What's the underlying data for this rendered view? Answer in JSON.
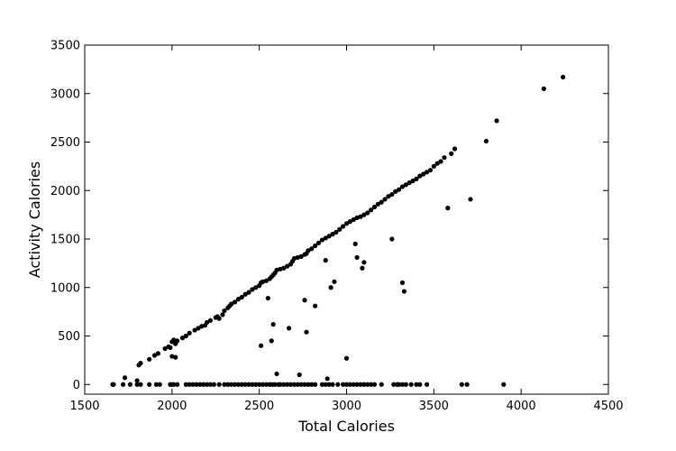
{
  "chart_data": {
    "type": "scatter",
    "title": "",
    "xlabel": "Total Calories",
    "ylabel": "Activity Calories",
    "xlim": [
      1500,
      4500
    ],
    "ylim": [
      -100,
      3500
    ],
    "xticks": [
      1500,
      2000,
      2500,
      3000,
      3500,
      4000,
      4500
    ],
    "yticks": [
      0,
      500,
      1000,
      1500,
      2000,
      2500,
      3000,
      3500
    ],
    "grid": false,
    "marker_color": "#000000",
    "series": [
      {
        "points": [
          [
            1660,
            0
          ],
          [
            1665,
            0
          ],
          [
            1720,
            0
          ],
          [
            1760,
            0
          ],
          [
            1800,
            0
          ],
          [
            1820,
            0
          ],
          [
            1870,
            0
          ],
          [
            1910,
            0
          ],
          [
            1930,
            0
          ],
          [
            1990,
            0
          ],
          [
            2000,
            0
          ],
          [
            2010,
            0
          ],
          [
            2030,
            0
          ],
          [
            2080,
            0
          ],
          [
            2100,
            0
          ],
          [
            2120,
            0
          ],
          [
            2140,
            0
          ],
          [
            2160,
            0
          ],
          [
            2180,
            0
          ],
          [
            2200,
            0
          ],
          [
            2220,
            0
          ],
          [
            2240,
            0
          ],
          [
            2270,
            0
          ],
          [
            2300,
            0
          ],
          [
            2320,
            0
          ],
          [
            2340,
            0
          ],
          [
            2360,
            0
          ],
          [
            2380,
            0
          ],
          [
            2400,
            0
          ],
          [
            2420,
            0
          ],
          [
            2440,
            0
          ],
          [
            2460,
            0
          ],
          [
            2480,
            0
          ],
          [
            2500,
            0
          ],
          [
            2520,
            0
          ],
          [
            2540,
            0
          ],
          [
            2560,
            0
          ],
          [
            2575,
            0
          ],
          [
            2590,
            0
          ],
          [
            2610,
            0
          ],
          [
            2620,
            0
          ],
          [
            2640,
            0
          ],
          [
            2660,
            0
          ],
          [
            2680,
            0
          ],
          [
            2700,
            0
          ],
          [
            2720,
            0
          ],
          [
            2740,
            0
          ],
          [
            2760,
            0
          ],
          [
            2780,
            0
          ],
          [
            2800,
            0
          ],
          [
            2820,
            0
          ],
          [
            2860,
            0
          ],
          [
            2880,
            0
          ],
          [
            2900,
            0
          ],
          [
            2920,
            0
          ],
          [
            2950,
            0
          ],
          [
            2980,
            0
          ],
          [
            3000,
            0
          ],
          [
            3020,
            0
          ],
          [
            3040,
            0
          ],
          [
            3060,
            0
          ],
          [
            3080,
            0
          ],
          [
            3100,
            0
          ],
          [
            3120,
            0
          ],
          [
            3140,
            0
          ],
          [
            3160,
            0
          ],
          [
            3200,
            0
          ],
          [
            3270,
            0
          ],
          [
            3290,
            0
          ],
          [
            3300,
            0
          ],
          [
            3320,
            0
          ],
          [
            3340,
            0
          ],
          [
            3370,
            0
          ],
          [
            3400,
            0
          ],
          [
            3420,
            0
          ],
          [
            3460,
            0
          ],
          [
            3660,
            0
          ],
          [
            3690,
            0
          ],
          [
            3900,
            0
          ],
          [
            1730,
            70
          ],
          [
            1800,
            40
          ],
          [
            1810,
            200
          ],
          [
            1820,
            220
          ],
          [
            1870,
            260
          ],
          [
            1900,
            300
          ],
          [
            1920,
            320
          ],
          [
            1960,
            370
          ],
          [
            1980,
            390
          ],
          [
            1990,
            380
          ],
          [
            2000,
            440
          ],
          [
            2010,
            460
          ],
          [
            2020,
            420
          ],
          [
            2030,
            450
          ],
          [
            2060,
            480
          ],
          [
            2080,
            500
          ],
          [
            2100,
            530
          ],
          [
            2130,
            560
          ],
          [
            2150,
            580
          ],
          [
            2170,
            600
          ],
          [
            2190,
            610
          ],
          [
            2200,
            640
          ],
          [
            2220,
            660
          ],
          [
            2250,
            690
          ],
          [
            2260,
            700
          ],
          [
            2270,
            680
          ],
          [
            2290,
            720
          ],
          [
            2300,
            760
          ],
          [
            2320,
            790
          ],
          [
            2330,
            810
          ],
          [
            2340,
            830
          ],
          [
            2360,
            850
          ],
          [
            2380,
            880
          ],
          [
            2400,
            900
          ],
          [
            2420,
            930
          ],
          [
            2440,
            950
          ],
          [
            2460,
            980
          ],
          [
            2480,
            1000
          ],
          [
            2500,
            1020
          ],
          [
            2510,
            1050
          ],
          [
            2520,
            1060
          ],
          [
            2540,
            1070
          ],
          [
            2560,
            1090
          ],
          [
            2570,
            1110
          ],
          [
            2580,
            1130
          ],
          [
            2590,
            1150
          ],
          [
            2600,
            1180
          ],
          [
            2620,
            1190
          ],
          [
            2640,
            1200
          ],
          [
            2660,
            1220
          ],
          [
            2680,
            1240
          ],
          [
            2690,
            1270
          ],
          [
            2700,
            1300
          ],
          [
            2720,
            1310
          ],
          [
            2740,
            1320
          ],
          [
            2760,
            1340
          ],
          [
            2770,
            1350
          ],
          [
            2780,
            1380
          ],
          [
            2800,
            1400
          ],
          [
            2820,
            1430
          ],
          [
            2840,
            1460
          ],
          [
            2860,
            1490
          ],
          [
            2880,
            1510
          ],
          [
            2900,
            1530
          ],
          [
            2920,
            1550
          ],
          [
            2940,
            1570
          ],
          [
            2960,
            1600
          ],
          [
            2980,
            1630
          ],
          [
            3000,
            1660
          ],
          [
            3020,
            1680
          ],
          [
            3040,
            1700
          ],
          [
            3060,
            1720
          ],
          [
            3080,
            1730
          ],
          [
            3100,
            1750
          ],
          [
            3120,
            1770
          ],
          [
            3140,
            1800
          ],
          [
            3160,
            1830
          ],
          [
            3180,
            1860
          ],
          [
            3200,
            1880
          ],
          [
            3220,
            1910
          ],
          [
            3240,
            1940
          ],
          [
            3260,
            1960
          ],
          [
            3280,
            1990
          ],
          [
            3300,
            2010
          ],
          [
            3320,
            2040
          ],
          [
            3340,
            2060
          ],
          [
            3360,
            2080
          ],
          [
            3380,
            2100
          ],
          [
            3400,
            2120
          ],
          [
            3420,
            2150
          ],
          [
            3440,
            2170
          ],
          [
            3460,
            2190
          ],
          [
            3480,
            2210
          ],
          [
            3500,
            2250
          ],
          [
            3520,
            2280
          ],
          [
            3540,
            2300
          ],
          [
            3560,
            2340
          ],
          [
            3600,
            2380
          ],
          [
            3620,
            2430
          ],
          [
            3800,
            2510
          ],
          [
            3860,
            2720
          ],
          [
            4130,
            3050
          ],
          [
            4240,
            3170
          ],
          [
            2020,
            280
          ],
          [
            2000,
            290
          ],
          [
            2510,
            400
          ],
          [
            2570,
            450
          ],
          [
            2580,
            620
          ],
          [
            2550,
            890
          ],
          [
            2600,
            110
          ],
          [
            2670,
            580
          ],
          [
            2730,
            100
          ],
          [
            2760,
            870
          ],
          [
            2770,
            540
          ],
          [
            2820,
            810
          ],
          [
            2880,
            1280
          ],
          [
            2910,
            1000
          ],
          [
            2930,
            1060
          ],
          [
            2890,
            60
          ],
          [
            3000,
            270
          ],
          [
            3050,
            1450
          ],
          [
            3060,
            1310
          ],
          [
            3090,
            1200
          ],
          [
            3100,
            1260
          ],
          [
            3260,
            1500
          ],
          [
            3320,
            1050
          ],
          [
            3330,
            960
          ],
          [
            3580,
            1820
          ],
          [
            3710,
            1910
          ]
        ]
      }
    ]
  }
}
